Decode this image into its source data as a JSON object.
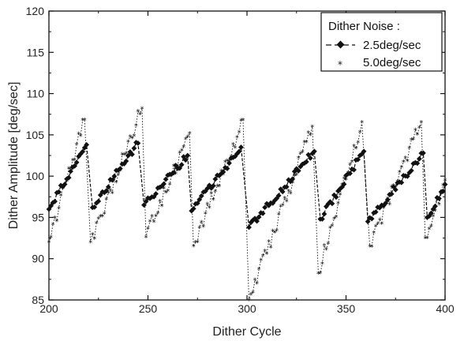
{
  "chart_data": {
    "type": "line",
    "title": "",
    "xlabel": "Dither Cycle",
    "ylabel": "Dither Amplitude [deg/sec]",
    "xlim": [
      200,
      400
    ],
    "ylim": [
      85,
      120
    ],
    "x_ticks": [
      "200",
      "250",
      "300",
      "350",
      "400"
    ],
    "y_ticks": [
      "85",
      "90",
      "95",
      "100",
      "105",
      "110",
      "115",
      "120"
    ],
    "grid": false,
    "legend": {
      "title": "Dither Noise :",
      "position": "top-right",
      "entries": [
        "2.5deg/sec",
        "5.0deg/sec"
      ]
    },
    "series": [
      {
        "name": "2.5deg/sec",
        "style": "dashed-diamond",
        "color": "#111111",
        "segments": [
          {
            "x0": 200,
            "x1": 219,
            "y0": 96.0,
            "y1": 103.8
          },
          {
            "x0": 222,
            "x1": 245,
            "y0": 96.2,
            "y1": 104.0
          },
          {
            "x0": 248,
            "x1": 270,
            "y0": 96.5,
            "y1": 102.5
          },
          {
            "x0": 272,
            "x1": 297,
            "y0": 95.8,
            "y1": 103.5
          },
          {
            "x0": 301,
            "x1": 334,
            "y0": 93.8,
            "y1": 103.0
          },
          {
            "x0": 337,
            "x1": 359,
            "y0": 94.8,
            "y1": 103.0
          },
          {
            "x0": 361,
            "x1": 389,
            "y0": 94.5,
            "y1": 102.8
          },
          {
            "x0": 391,
            "x1": 400,
            "y0": 95.0,
            "y1": 99.0
          }
        ]
      },
      {
        "name": "5.0deg/sec",
        "style": "dotted-star",
        "color": "#111111",
        "segments": [
          {
            "x0": 200,
            "x1": 218,
            "y0": 92.0,
            "y1": 106.8
          },
          {
            "x0": 221,
            "x1": 247,
            "y0": 92.0,
            "y1": 108.2
          },
          {
            "x0": 249,
            "x1": 271,
            "y0": 92.6,
            "y1": 105.2
          },
          {
            "x0": 273,
            "x1": 298,
            "y0": 91.5,
            "y1": 106.8
          },
          {
            "x0": 301,
            "x1": 333,
            "y0": 85.0,
            "y1": 106.0
          },
          {
            "x0": 336,
            "x1": 358,
            "y0": 88.2,
            "y1": 106.5
          },
          {
            "x0": 362,
            "x1": 388,
            "y0": 91.5,
            "y1": 106.5
          },
          {
            "x0": 390,
            "x1": 400,
            "y0": 92.5,
            "y1": 99.5
          }
        ]
      }
    ]
  }
}
